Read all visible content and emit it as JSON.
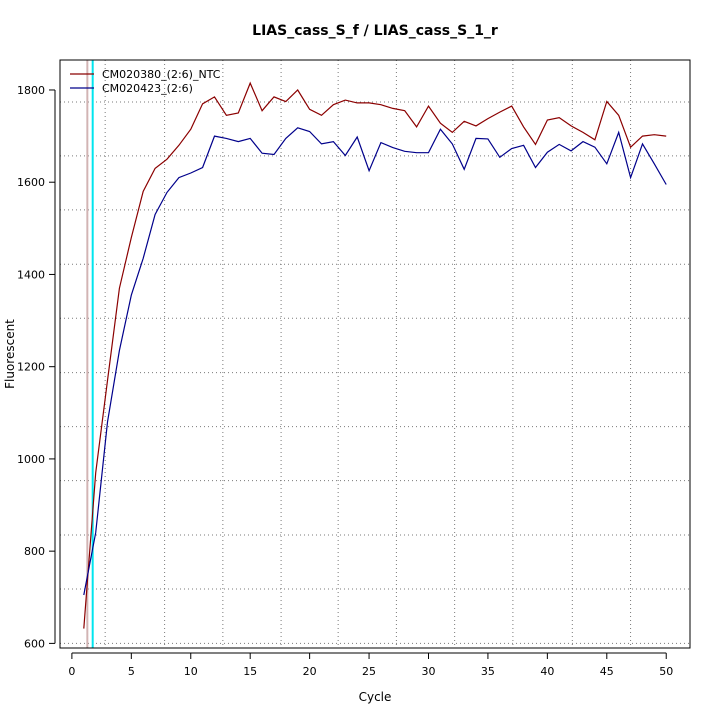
{
  "chart_data": {
    "type": "line",
    "title": "LIAS_cass_S_f / LIAS_cass_S_1_r",
    "xlabel": "Cycle",
    "ylabel": "Fluorescent",
    "xlim": [
      -1,
      52
    ],
    "ylim": [
      590,
      1865
    ],
    "xticks": [
      0,
      5,
      10,
      15,
      20,
      25,
      30,
      35,
      40,
      45,
      50
    ],
    "yticks": [
      600,
      800,
      1000,
      1200,
      1400,
      1600,
      1800
    ],
    "grid": "dotted",
    "grid_x": [
      2.8,
      7.8,
      12.7,
      17.6,
      22.4,
      27.3,
      32.2,
      37.1,
      42.1,
      47.0
    ],
    "grid_y": [
      600,
      718,
      835,
      953,
      1070,
      1187,
      1305,
      1422,
      1540,
      1657,
      1774
    ],
    "legend_position": "top-left",
    "threshold_lines": [
      {
        "x": 1.3,
        "color": "#d2b4b4"
      },
      {
        "x": 1.75,
        "color": "#00e5ee"
      }
    ],
    "x": [
      1,
      2,
      3,
      4,
      5,
      6,
      7,
      8,
      9,
      10,
      11,
      12,
      13,
      14,
      15,
      16,
      17,
      18,
      19,
      20,
      21,
      22,
      23,
      24,
      25,
      26,
      27,
      28,
      29,
      30,
      31,
      32,
      33,
      34,
      35,
      36,
      37,
      38,
      39,
      40,
      41,
      42,
      43,
      44,
      45,
      46,
      47,
      48,
      49,
      50
    ],
    "series": [
      {
        "name": "CM020380_(2:6)_NTC",
        "color": "#8b0000",
        "values": [
          632,
          970,
          1170,
          1370,
          1480,
          1580,
          1630,
          1650,
          1680,
          1715,
          1770,
          1785,
          1745,
          1750,
          1815,
          1755,
          1785,
          1775,
          1800,
          1758,
          1745,
          1768,
          1778,
          1772,
          1772,
          1768,
          1760,
          1755,
          1720,
          1765,
          1728,
          1708,
          1732,
          1722,
          1738,
          1752,
          1765,
          1720,
          1682,
          1735,
          1740,
          1722,
          1708,
          1692,
          1775,
          1745,
          1676,
          1700,
          1703,
          1700
        ]
      },
      {
        "name": "CM020423_(2:6)",
        "color": "#00008b",
        "values": [
          705,
          840,
          1080,
          1235,
          1355,
          1435,
          1530,
          1578,
          1610,
          1620,
          1632,
          1700,
          1695,
          1688,
          1695,
          1663,
          1660,
          1695,
          1718,
          1710,
          1683,
          1688,
          1658,
          1698,
          1625,
          1686,
          1675,
          1667,
          1664,
          1664,
          1715,
          1683,
          1628,
          1695,
          1694,
          1654,
          1673,
          1680,
          1632,
          1665,
          1682,
          1668,
          1688,
          1676,
          1640,
          1708,
          1610,
          1683,
          1640,
          1595
        ]
      }
    ]
  }
}
